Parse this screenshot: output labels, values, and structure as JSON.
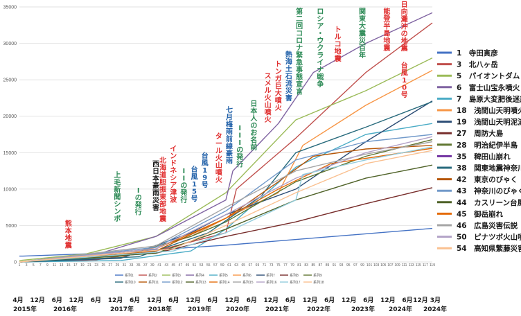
{
  "chart_data": {
    "type": "line",
    "xlim": [
      1,
      119
    ],
    "ylim": [
      0,
      35000
    ],
    "grid": true,
    "y_ticks": [
      0,
      5000,
      10000,
      15000,
      20000,
      25000,
      30000,
      35000
    ],
    "x_ticks": [
      "1",
      "3",
      "5",
      "7",
      "9",
      "11",
      "13",
      "15",
      "17",
      "19",
      "21",
      "23",
      "25",
      "27",
      "29",
      "31",
      "33",
      "35",
      "37",
      "39",
      "41",
      "43",
      "45",
      "47",
      "49",
      "51",
      "53",
      "55",
      "57",
      "59",
      "61",
      "63",
      "65",
      "67",
      "69",
      "71",
      "73",
      "75",
      "77",
      "79",
      "81",
      "83",
      "85",
      "87",
      "89",
      "91",
      "93",
      "95",
      "97",
      "99",
      "101",
      "103",
      "105",
      "107",
      "109",
      "111",
      "113",
      "115",
      "117",
      "119"
    ],
    "series": [
      {
        "name": "系列1",
        "color": "#4472c4",
        "values": [
          [
            1,
            800
          ],
          [
            2,
            800
          ],
          [
            25,
            1200
          ],
          [
            60,
            2300
          ],
          [
            119,
            4600
          ]
        ]
      },
      {
        "name": "系列2",
        "color": "#c0504d",
        "values": [
          [
            1,
            0
          ],
          [
            23,
            300
          ],
          [
            40,
            1500
          ],
          [
            60,
            4000
          ],
          [
            63,
            10000
          ],
          [
            80,
            17000
          ],
          [
            100,
            26000
          ],
          [
            119,
            32800
          ]
        ]
      },
      {
        "name": "系列3",
        "color": "#9bbb59",
        "values": [
          [
            1,
            200
          ],
          [
            20,
            1100
          ],
          [
            40,
            3500
          ],
          [
            60,
            9500
          ],
          [
            80,
            19500
          ],
          [
            100,
            23500
          ],
          [
            119,
            28000
          ]
        ]
      },
      {
        "name": "系列4",
        "color": "#8064a2",
        "values": [
          [
            1,
            0
          ],
          [
            20,
            600
          ],
          [
            40,
            3500
          ],
          [
            60,
            8500
          ],
          [
            62,
            12500
          ],
          [
            75,
            19000
          ],
          [
            85,
            26000
          ],
          [
            100,
            30000
          ],
          [
            119,
            34200
          ]
        ]
      },
      {
        "name": "系列5",
        "color": "#4bacc6",
        "values": [
          [
            1,
            0
          ],
          [
            30,
            200
          ],
          [
            50,
            1500
          ],
          [
            60,
            4500
          ],
          [
            80,
            13000
          ],
          [
            100,
            17500
          ],
          [
            119,
            19000
          ]
        ]
      },
      {
        "name": "系列6",
        "color": "#f79646",
        "values": [
          [
            1,
            0
          ],
          [
            30,
            600
          ],
          [
            50,
            3500
          ],
          [
            60,
            6000
          ],
          [
            75,
            9500
          ],
          [
            82,
            16000
          ],
          [
            100,
            21500
          ],
          [
            119,
            26300
          ]
        ]
      },
      {
        "name": "系列7",
        "color": "#2c4d75",
        "values": [
          [
            1,
            0
          ],
          [
            30,
            500
          ],
          [
            50,
            4000
          ],
          [
            60,
            6500
          ],
          [
            80,
            10000
          ],
          [
            100,
            16500
          ],
          [
            119,
            22100
          ]
        ]
      },
      {
        "name": "系列8",
        "color": "#772c2a",
        "values": [
          [
            1,
            0
          ],
          [
            40,
            1200
          ],
          [
            60,
            3500
          ],
          [
            80,
            5500
          ],
          [
            100,
            8000
          ],
          [
            119,
            10200
          ]
        ]
      },
      {
        "name": "系列9",
        "color": "#5f7530",
        "values": [
          [
            1,
            0
          ],
          [
            30,
            800
          ],
          [
            50,
            3500
          ],
          [
            60,
            5500
          ],
          [
            80,
            11000
          ],
          [
            100,
            14500
          ],
          [
            119,
            16800
          ]
        ]
      },
      {
        "name": "系列10",
        "color": "#276a7c",
        "values": [
          [
            1,
            0
          ],
          [
            35,
            700
          ],
          [
            55,
            4000
          ],
          [
            70,
            9000
          ],
          [
            80,
            15000
          ],
          [
            100,
            18500
          ],
          [
            119,
            22000
          ]
        ]
      },
      {
        "name": "系列11",
        "color": "#b65708",
        "values": [
          [
            1,
            0
          ],
          [
            40,
            1500
          ],
          [
            60,
            6000
          ],
          [
            75,
            11000
          ],
          [
            85,
            14500
          ],
          [
            100,
            15500
          ],
          [
            119,
            16000
          ]
        ]
      },
      {
        "name": "系列12",
        "color": "#729aca",
        "values": [
          [
            1,
            0
          ],
          [
            40,
            2000
          ],
          [
            60,
            7000
          ],
          [
            80,
            14000
          ],
          [
            100,
            16500
          ],
          [
            119,
            17500
          ]
        ]
      },
      {
        "name": "系列13",
        "color": "#4f6228",
        "values": [
          [
            1,
            0
          ],
          [
            40,
            1200
          ],
          [
            60,
            4500
          ],
          [
            80,
            8500
          ],
          [
            100,
            11500
          ],
          [
            119,
            13300
          ]
        ]
      },
      {
        "name": "系列14",
        "color": "#e46c0a",
        "values": [
          [
            1,
            0
          ],
          [
            40,
            1800
          ],
          [
            60,
            6000
          ],
          [
            75,
            10000
          ],
          [
            90,
            13500
          ],
          [
            119,
            15600
          ]
        ]
      },
      {
        "name": "系列15",
        "color": "#a5a5a5",
        "values": [
          [
            1,
            0
          ],
          [
            40,
            2200
          ],
          [
            60,
            7500
          ],
          [
            80,
            12500
          ],
          [
            100,
            14800
          ],
          [
            119,
            16500
          ]
        ]
      },
      {
        "name": "系列16",
        "color": "#b3a2c7",
        "values": [
          [
            1,
            0
          ],
          [
            40,
            1800
          ],
          [
            60,
            6500
          ],
          [
            80,
            11500
          ],
          [
            100,
            15000
          ],
          [
            119,
            17200
          ]
        ]
      },
      {
        "name": "系列17",
        "color": "#93cddd",
        "values": [
          [
            1,
            0
          ],
          [
            45,
            1500
          ],
          [
            60,
            4000
          ],
          [
            80,
            8500
          ],
          [
            82,
            12000
          ],
          [
            100,
            14000
          ],
          [
            119,
            15800
          ]
        ]
      },
      {
        "name": "系列18",
        "color": "#fac090",
        "values": [
          [
            1,
            0
          ],
          [
            45,
            1800
          ],
          [
            60,
            5000
          ],
          [
            80,
            9500
          ],
          [
            100,
            13500
          ],
          [
            119,
            15300
          ]
        ]
      }
    ],
    "annotations": [
      {
        "text": "熊本地震",
        "x": 15,
        "color": "#e03030",
        "top": 316
      },
      {
        "text": "上毛新聞シンポ",
        "x": 29,
        "color": "#2e8b57",
        "top": 246
      },
      {
        "text": "Iの発行",
        "x": 35,
        "color": "#2e8b57",
        "top": 268
      },
      {
        "text": "西日本豪雨災害",
        "x": 40,
        "color": "#1a1a1a",
        "top": 230
      },
      {
        "text": "北海道胆振東部地震",
        "x": 42,
        "color": "#e03030",
        "top": 225
      },
      {
        "text": "インドネシア津波",
        "x": 45,
        "color": "#e03030",
        "top": 208
      },
      {
        "text": "IIの発行",
        "x": 48,
        "color": "#2e8b57",
        "top": 240
      },
      {
        "text": "台風15号",
        "x": 51,
        "color": "#1f5fa8",
        "top": 238
      },
      {
        "text": "台風19号",
        "x": 54,
        "color": "#1f5fa8",
        "top": 218
      },
      {
        "text": "タール火山噴火",
        "x": 58,
        "color": "#e03030",
        "top": 190
      },
      {
        "text": "七月梅雨前線豪雨",
        "x": 61,
        "color": "#1f5fa8",
        "top": 152
      },
      {
        "text": "IIIの発行",
        "x": 64,
        "color": "#2e8b57",
        "top": 178
      },
      {
        "text": "日本人のお名前",
        "x": 68,
        "color": "#2e8b57",
        "top": 143
      },
      {
        "text": "スメル火山噴火",
        "x": 72,
        "color": "#e03030",
        "top": 103
      },
      {
        "text": "トンガ巨大噴火",
        "x": 75,
        "color": "#e03030",
        "top": 86
      },
      {
        "text": "熱海土石流災害",
        "x": 78,
        "color": "#1f5fa8",
        "top": 72
      },
      {
        "text": "第二回コロナ緊急事態宣言",
        "x": 81,
        "color": "#2e8b57",
        "top": 10
      },
      {
        "text": "ロシア・ウクライナ戦争",
        "x": 87,
        "color": "#2e8b57",
        "top": 10
      },
      {
        "text": "トルコ地震",
        "x": 92,
        "color": "#e03030",
        "top": 36
      },
      {
        "text": "関東大震災百年",
        "x": 99,
        "color": "#2e8b57",
        "top": 10
      },
      {
        "text": "能登半島地震",
        "x": 106,
        "color": "#e03030",
        "top": 10
      },
      {
        "text": "日向灘沖の地震",
        "x": 111,
        "color": "#e03030",
        "top": 0
      },
      {
        "text": "台風10号",
        "x": 111,
        "color": "#e03030",
        "top": 88
      }
    ],
    "right_legend": [
      {
        "label": "1　寺田寅彦",
        "color": "#4472c4"
      },
      {
        "label": "3　北八ヶ岳",
        "color": "#c0504d"
      },
      {
        "label": "5　パイオントダム",
        "color": "#9bbb59"
      },
      {
        "label": "6　富士山宝永噴火",
        "color": "#8064a2"
      },
      {
        "label": "7　島原大変肥後迷惑",
        "color": "#4bacc6"
      },
      {
        "label": "18　浅間山天明噴火",
        "color": "#f79646"
      },
      {
        "label": "19　浅間山天明泥流",
        "color": "#2c4d75"
      },
      {
        "label": "27　周防大島",
        "color": "#772c2a"
      },
      {
        "label": "28　明治紀伊半島",
        "color": "#5f7530"
      },
      {
        "label": "35　稗田山崩れ",
        "color": "#7030a0"
      },
      {
        "label": "38　関東地震神奈川",
        "color": "#276a7c"
      },
      {
        "label": "42　東京のびゃく",
        "color": "#b65708"
      },
      {
        "label": "43　神奈川のびゃく",
        "color": "#729aca"
      },
      {
        "label": "44　カスリーン台風",
        "color": "#4f6228"
      },
      {
        "label": "45　御岳崩れ",
        "color": "#e46c0a"
      },
      {
        "label": "46　広島災害伝説",
        "color": "#a5a5a5"
      },
      {
        "label": "50　ピナツボ火山噴火",
        "color": "#b3a2c7"
      },
      {
        "label": "54　高知県繁藤災害",
        "color": "#fac090"
      }
    ],
    "timeline": {
      "months": [
        "4月",
        "12月",
        "6月",
        "12月",
        "6月",
        "12月",
        "6月",
        "12月",
        "6月",
        "12月",
        "6月",
        "12月",
        "6月",
        "12月",
        "6月",
        "12月",
        "6月",
        "12月",
        "6月",
        "12月",
        "6月",
        "12月 3月"
      ],
      "years": [
        "2015年",
        "2016年",
        "2017年",
        "2018年",
        "2019年",
        "2020年",
        "2021年",
        "2022年",
        "2023年",
        "2024年",
        "2024年"
      ]
    }
  }
}
